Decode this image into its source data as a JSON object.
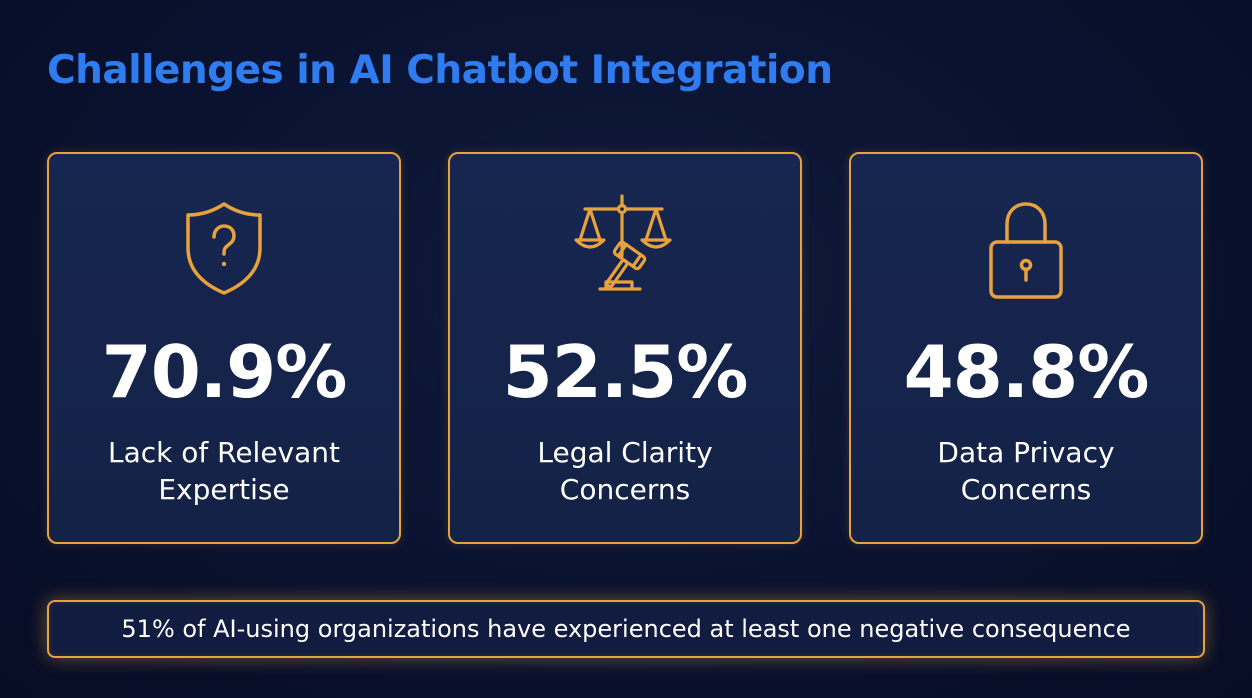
{
  "title": "Challenges in AI Chatbot Integration",
  "cards": [
    {
      "icon": "shield-question-icon",
      "value": "70.9%",
      "label_lines": [
        "Lack of Relevant",
        "Expertise"
      ]
    },
    {
      "icon": "scales-gavel-icon",
      "value": "52.5%",
      "label_lines": [
        "Legal Clarity",
        "Concerns"
      ]
    },
    {
      "icon": "padlock-icon",
      "value": "48.8%",
      "label_lines": [
        "Data Privacy",
        "Concerns"
      ]
    }
  ],
  "footer": {
    "text": "51% of AI-using organizations have experienced at least one negative consequence"
  },
  "colors": {
    "background": "#0a1230",
    "card_background": "#162449",
    "accent_orange": "#e7a23c",
    "title_blue": "#2f7cf0",
    "text_white": "#ffffff"
  }
}
